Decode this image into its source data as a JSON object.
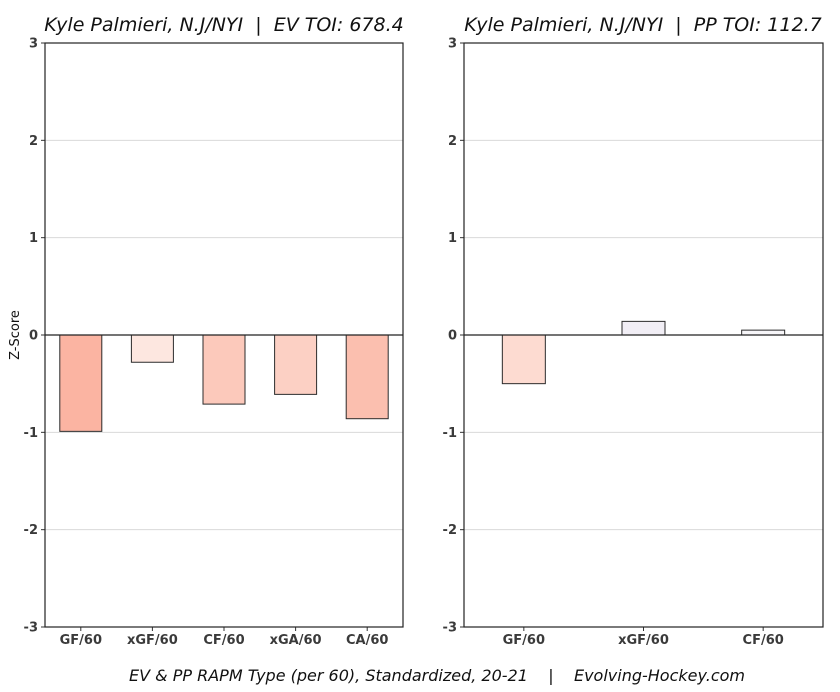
{
  "chart_data": [
    {
      "type": "bar",
      "title": "Kyle Palmieri, N.J/NYI  |  EV TOI: 678.4",
      "ylabel": "Z-Score",
      "xlabel": "",
      "ylim": [
        -3,
        3
      ],
      "yticks": [
        "3",
        "2",
        "1",
        "0",
        "-1",
        "-2",
        "-3"
      ],
      "grid": true,
      "categories": [
        "GF/60",
        "xGF/60",
        "CF/60",
        "xGA/60",
        "CA/60"
      ],
      "values": [
        -0.99,
        -0.28,
        -0.71,
        -0.61,
        -0.86
      ],
      "colors": [
        "#fbb4a2",
        "#fde7e0",
        "#fcc9bb",
        "#fcd0c4",
        "#fbbfaf"
      ]
    },
    {
      "type": "bar",
      "title": "Kyle Palmieri, N.J/NYI  |  PP TOI: 112.7",
      "ylabel": "",
      "xlabel": "",
      "ylim": [
        -3,
        3
      ],
      "yticks": [
        "3",
        "2",
        "1",
        "0",
        "-1",
        "-2",
        "-3"
      ],
      "grid": true,
      "categories": [
        "GF/60",
        "xGF/60",
        "CF/60"
      ],
      "values": [
        -0.5,
        0.14,
        0.05
      ],
      "colors": [
        "#fddbd1",
        "#f1eef5",
        "#f6f5f8"
      ]
    }
  ],
  "caption": "EV & PP RAPM Type (per 60), Standardized, 20-21    |    Evolving-Hockey.com"
}
